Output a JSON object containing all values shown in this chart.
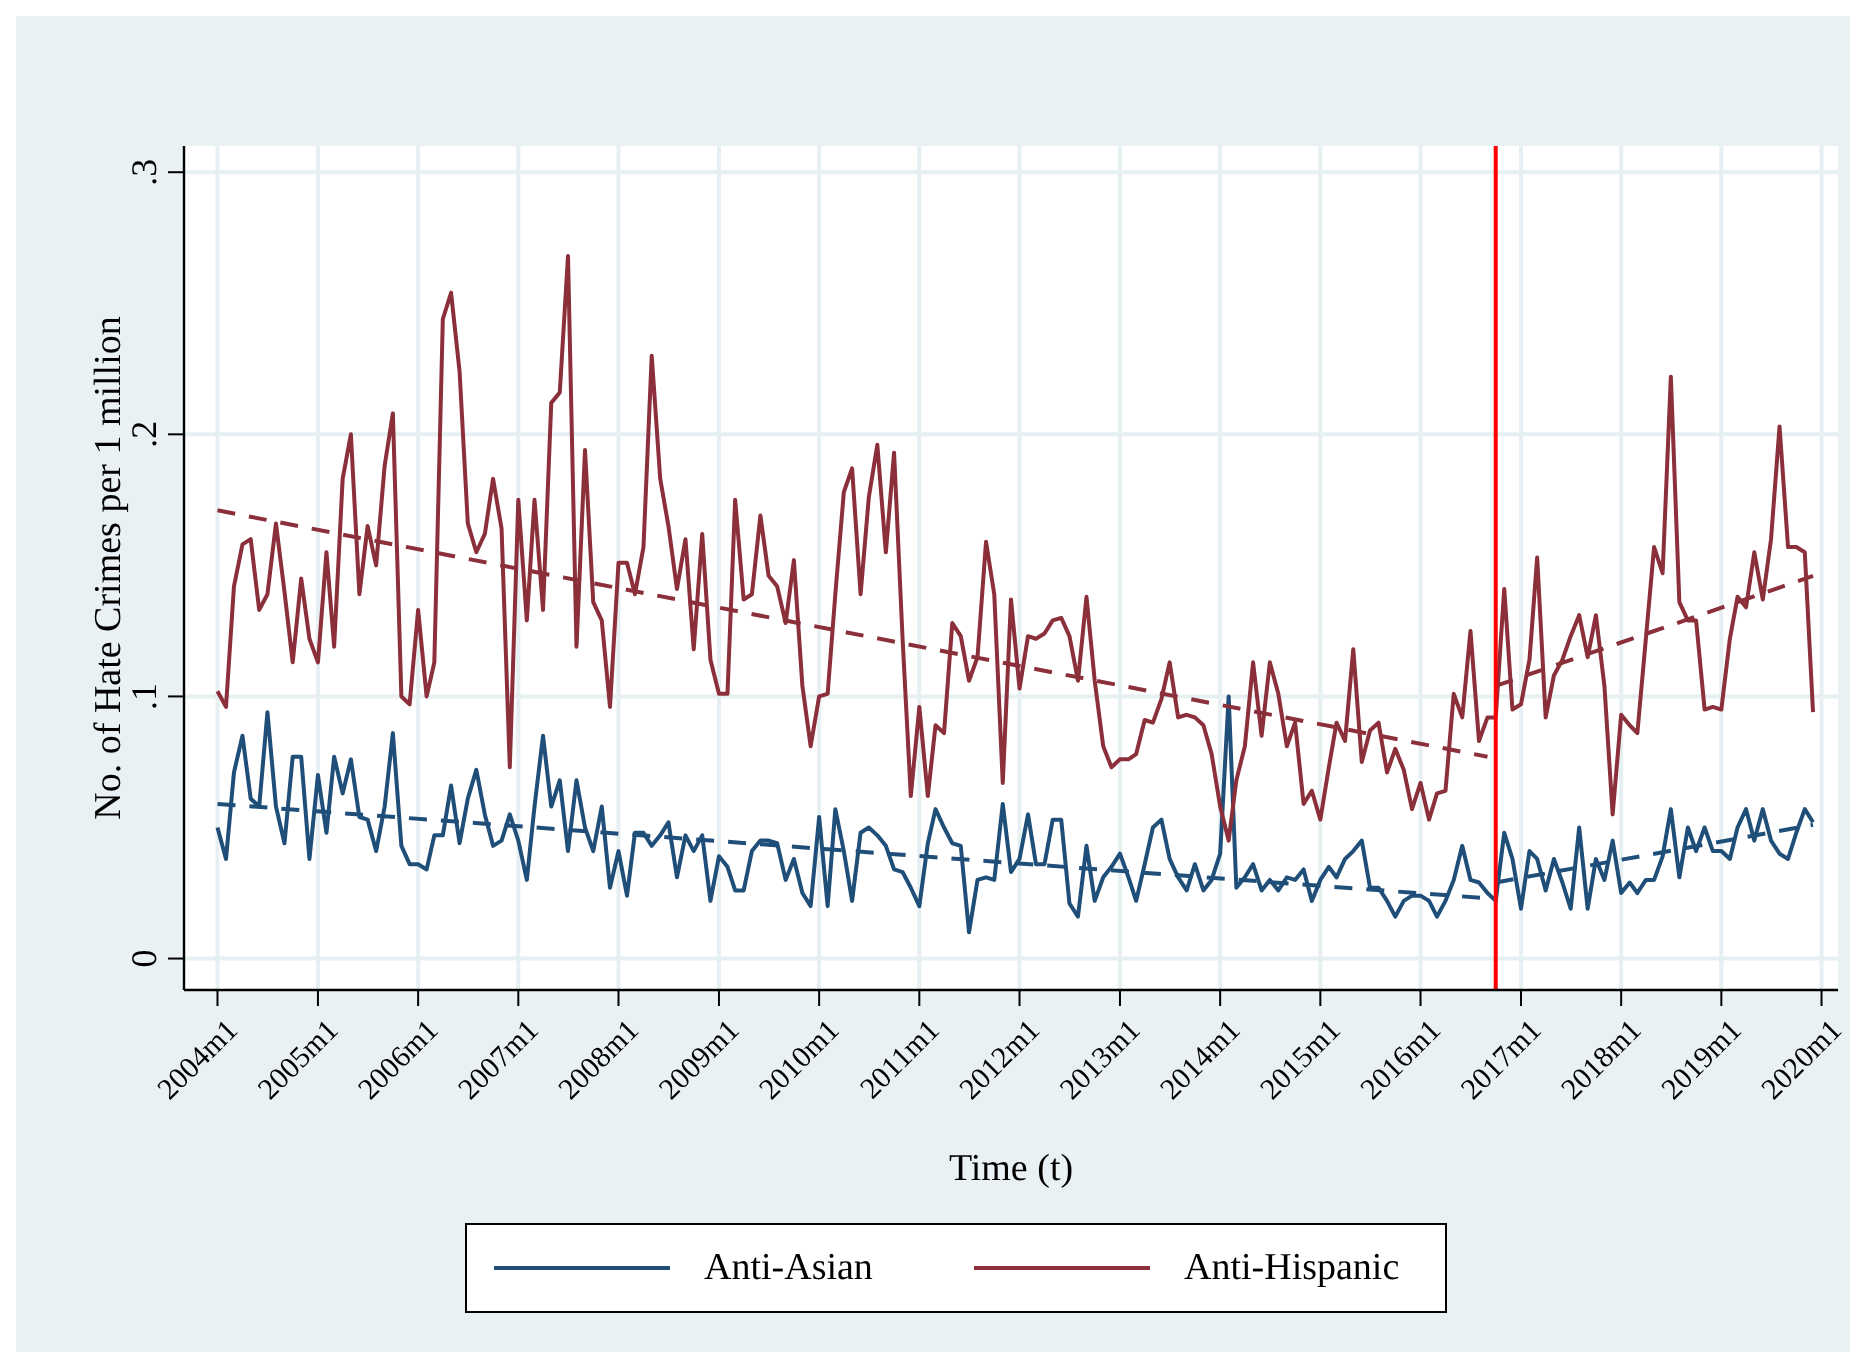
{
  "chart_data": {
    "type": "line",
    "xlabel": "Time (t)",
    "ylabel": "No. of Hate Crimes per 1 million",
    "x": [
      "2004-01",
      "2004-02",
      "2004-03",
      "2004-04",
      "2004-05",
      "2004-06",
      "2004-07",
      "2004-08",
      "2004-09",
      "2004-10",
      "2004-11",
      "2004-12",
      "2005-01",
      "2005-02",
      "2005-03",
      "2005-04",
      "2005-05",
      "2005-06",
      "2005-07",
      "2005-08",
      "2005-09",
      "2005-10",
      "2005-11",
      "2005-12",
      "2006-01",
      "2006-02",
      "2006-03",
      "2006-04",
      "2006-05",
      "2006-06",
      "2006-07",
      "2006-08",
      "2006-09",
      "2006-10",
      "2006-11",
      "2006-12",
      "2007-01",
      "2007-02",
      "2007-03",
      "2007-04",
      "2007-05",
      "2007-06",
      "2007-07",
      "2007-08",
      "2007-09",
      "2007-10",
      "2007-11",
      "2007-12",
      "2008-01",
      "2008-02",
      "2008-03",
      "2008-04",
      "2008-05",
      "2008-06",
      "2008-07",
      "2008-08",
      "2008-09",
      "2008-10",
      "2008-11",
      "2008-12",
      "2009-01",
      "2009-02",
      "2009-03",
      "2009-04",
      "2009-05",
      "2009-06",
      "2009-07",
      "2009-08",
      "2009-09",
      "2009-10",
      "2009-11",
      "2009-12",
      "2010-01",
      "2010-02",
      "2010-03",
      "2010-04",
      "2010-05",
      "2010-06",
      "2010-07",
      "2010-08",
      "2010-09",
      "2010-10",
      "2010-11",
      "2010-12",
      "2011-01",
      "2011-02",
      "2011-03",
      "2011-04",
      "2011-05",
      "2011-06",
      "2011-07",
      "2011-08",
      "2011-09",
      "2011-10",
      "2011-11",
      "2011-12",
      "2012-01",
      "2012-02",
      "2012-03",
      "2012-04",
      "2012-05",
      "2012-06",
      "2012-07",
      "2012-08",
      "2012-09",
      "2012-10",
      "2012-11",
      "2012-12",
      "2013-01",
      "2013-02",
      "2013-03",
      "2013-04",
      "2013-05",
      "2013-06",
      "2013-07",
      "2013-08",
      "2013-09",
      "2013-10",
      "2013-11",
      "2013-12",
      "2014-01",
      "2014-02",
      "2014-03",
      "2014-04",
      "2014-05",
      "2014-06",
      "2014-07",
      "2014-08",
      "2014-09",
      "2014-10",
      "2014-11",
      "2014-12",
      "2015-01",
      "2015-02",
      "2015-03",
      "2015-04",
      "2015-05",
      "2015-06",
      "2015-07",
      "2015-08",
      "2015-09",
      "2015-10",
      "2015-11",
      "2015-12",
      "2016-01",
      "2016-02",
      "2016-03",
      "2016-04",
      "2016-05",
      "2016-06",
      "2016-07",
      "2016-08",
      "2016-09",
      "2016-10",
      "2016-11",
      "2016-12",
      "2017-01",
      "2017-02",
      "2017-03",
      "2017-04",
      "2017-05",
      "2017-06",
      "2017-07",
      "2017-08",
      "2017-09",
      "2017-10",
      "2017-11",
      "2017-12",
      "2018-01",
      "2018-02",
      "2018-03",
      "2018-04",
      "2018-05",
      "2018-06",
      "2018-07",
      "2018-08",
      "2018-09",
      "2018-10",
      "2018-11",
      "2018-12",
      "2019-01",
      "2019-02",
      "2019-03",
      "2019-04",
      "2019-05",
      "2019-06",
      "2019-07",
      "2019-08",
      "2019-09",
      "2019-10",
      "2019-11",
      "2019-12"
    ],
    "series": [
      {
        "name": "Anti-Asian",
        "color": "#1f4e79",
        "values": [
          0.05,
          0.038,
          0.071,
          0.085,
          0.061,
          0.058,
          0.094,
          0.058,
          0.044,
          0.077,
          0.077,
          0.038,
          0.07,
          0.048,
          0.077,
          0.063,
          0.076,
          0.054,
          0.053,
          0.041,
          0.058,
          0.086,
          0.043,
          0.036,
          0.036,
          0.034,
          0.047,
          0.047,
          0.066,
          0.044,
          0.061,
          0.072,
          0.055,
          0.043,
          0.045,
          0.055,
          0.045,
          0.03,
          0.058,
          0.085,
          0.058,
          0.068,
          0.041,
          0.068,
          0.05,
          0.041,
          0.058,
          0.027,
          0.041,
          0.024,
          0.048,
          0.048,
          0.043,
          0.047,
          0.052,
          0.031,
          0.047,
          0.041,
          0.047,
          0.022,
          0.039,
          0.035,
          0.026,
          0.026,
          0.041,
          0.045,
          0.045,
          0.044,
          0.03,
          0.038,
          0.025,
          0.02,
          0.054,
          0.02,
          0.057,
          0.041,
          0.022,
          0.048,
          0.05,
          0.047,
          0.043,
          0.034,
          0.033,
          0.027,
          0.02,
          0.044,
          0.057,
          0.05,
          0.044,
          0.043,
          0.01,
          0.03,
          0.031,
          0.03,
          0.059,
          0.033,
          0.038,
          0.055,
          0.036,
          0.036,
          0.053,
          0.053,
          0.021,
          0.016,
          0.043,
          0.022,
          0.031,
          0.035,
          0.04,
          0.031,
          0.022,
          0.036,
          0.05,
          0.053,
          0.038,
          0.031,
          0.026,
          0.036,
          0.026,
          0.03,
          0.04,
          0.1,
          0.027,
          0.031,
          0.036,
          0.026,
          0.03,
          0.026,
          0.031,
          0.03,
          0.034,
          0.022,
          0.03,
          0.035,
          0.031,
          0.038,
          0.041,
          0.045,
          0.027,
          0.027,
          0.022,
          0.016,
          0.022,
          0.024,
          0.024,
          0.022,
          0.016,
          0.022,
          0.03,
          0.043,
          0.03,
          0.029,
          0.025,
          0.022,
          0.048,
          0.038,
          0.019,
          0.041,
          0.038,
          0.026,
          0.038,
          0.029,
          0.019,
          0.05,
          0.019,
          0.038,
          0.03,
          0.045,
          0.025,
          0.029,
          0.025,
          0.03,
          0.03,
          0.039,
          0.057,
          0.031,
          0.05,
          0.041,
          0.05,
          0.041,
          0.041,
          0.038,
          0.05,
          0.057,
          0.045,
          0.057,
          0.045,
          0.04,
          0.038,
          0.048,
          0.057,
          0.052
        ]
      },
      {
        "name": "Anti-Hispanic",
        "color": "#8b2f3a",
        "values": [
          0.102,
          0.096,
          0.142,
          0.158,
          0.16,
          0.133,
          0.139,
          0.166,
          0.14,
          0.113,
          0.145,
          0.122,
          0.113,
          0.155,
          0.119,
          0.183,
          0.2,
          0.139,
          0.165,
          0.15,
          0.188,
          0.208,
          0.1,
          0.097,
          0.133,
          0.1,
          0.113,
          0.244,
          0.254,
          0.224,
          0.166,
          0.155,
          0.162,
          0.183,
          0.164,
          0.073,
          0.175,
          0.129,
          0.175,
          0.133,
          0.212,
          0.216,
          0.268,
          0.119,
          0.194,
          0.136,
          0.129,
          0.096,
          0.151,
          0.151,
          0.139,
          0.157,
          0.23,
          0.183,
          0.165,
          0.141,
          0.16,
          0.118,
          0.162,
          0.114,
          0.101,
          0.101,
          0.175,
          0.137,
          0.139,
          0.169,
          0.146,
          0.142,
          0.128,
          0.152,
          0.104,
          0.081,
          0.1,
          0.101,
          0.139,
          0.178,
          0.187,
          0.139,
          0.176,
          0.196,
          0.155,
          0.193,
          0.122,
          0.062,
          0.096,
          0.062,
          0.089,
          0.086,
          0.128,
          0.123,
          0.106,
          0.115,
          0.159,
          0.139,
          0.067,
          0.137,
          0.103,
          0.123,
          0.122,
          0.124,
          0.129,
          0.13,
          0.123,
          0.106,
          0.138,
          0.106,
          0.081,
          0.073,
          0.076,
          0.076,
          0.078,
          0.091,
          0.09,
          0.099,
          0.113,
          0.092,
          0.093,
          0.092,
          0.089,
          0.078,
          0.058,
          0.045,
          0.068,
          0.081,
          0.113,
          0.085,
          0.113,
          0.101,
          0.081,
          0.09,
          0.059,
          0.064,
          0.053,
          0.073,
          0.09,
          0.083,
          0.118,
          0.075,
          0.087,
          0.09,
          0.071,
          0.08,
          0.072,
          0.057,
          0.067,
          0.053,
          0.063,
          0.064,
          0.101,
          0.092,
          0.125,
          0.083,
          0.092,
          0.092,
          0.141,
          0.095,
          0.097,
          0.114,
          0.153,
          0.092,
          0.108,
          0.114,
          0.123,
          0.131,
          0.115,
          0.131,
          0.104,
          0.055,
          0.093,
          0.089,
          0.086,
          0.122,
          0.157,
          0.147,
          0.222,
          0.136,
          0.129,
          0.129,
          0.095,
          0.096,
          0.095,
          0.122,
          0.138,
          0.134,
          0.155,
          0.137,
          0.16,
          0.203,
          0.157,
          0.157,
          0.155,
          0.094
        ]
      },
      {
        "type": "line",
        "color": "#1f4e79",
        "line_style": "dashed",
        "x": [
          "2004-01",
          "2016-09"
        ],
        "values": [
          0.059,
          0.023
        ]
      },
      {
        "type": "line",
        "color": "#1f4e79",
        "line_style": "dashed",
        "x": [
          "2016-10",
          "2019-12"
        ],
        "values": [
          0.029,
          0.051
        ]
      },
      {
        "type": "line",
        "color": "#8b2f3a",
        "line_style": "dashed",
        "x": [
          "2004-01",
          "2016-09"
        ],
        "values": [
          0.171,
          0.077
        ]
      },
      {
        "type": "line",
        "color": "#8b2f3a",
        "line_style": "dashed",
        "x": [
          "2016-10",
          "2019-12"
        ],
        "values": [
          0.104,
          0.146
        ]
      }
    ],
    "xlim": [
      "2003-09",
      "2020-03"
    ],
    "xticks": [
      {
        "value": "2004-01",
        "label": "2004m1"
      },
      {
        "value": "2005-01",
        "label": "2005m1"
      },
      {
        "value": "2006-01",
        "label": "2006m1"
      },
      {
        "value": "2007-01",
        "label": "2007m1"
      },
      {
        "value": "2008-01",
        "label": "2008m1"
      },
      {
        "value": "2009-01",
        "label": "2009m1"
      },
      {
        "value": "2010-01",
        "label": "2010m1"
      },
      {
        "value": "2011-01",
        "label": "2011m1"
      },
      {
        "value": "2012-01",
        "label": "2012m1"
      },
      {
        "value": "2013-01",
        "label": "2013m1"
      },
      {
        "value": "2014-01",
        "label": "2014m1"
      },
      {
        "value": "2015-01",
        "label": "2015m1"
      },
      {
        "value": "2016-01",
        "label": "2016m1"
      },
      {
        "value": "2017-01",
        "label": "2017m1"
      },
      {
        "value": "2018-01",
        "label": "2018m1"
      },
      {
        "value": "2019-01",
        "label": "2019m1"
      },
      {
        "value": "2020-01",
        "label": "2020m1"
      }
    ],
    "ylim": [
      -0.012,
      0.31
    ],
    "yticks": [
      0,
      {
        "value": 0.1,
        "label": ".1"
      },
      {
        "value": 0.2,
        "label": ".2"
      },
      {
        "value": 0.3,
        "label": ".3"
      }
    ],
    "ref_lines": [
      {
        "axis": "x",
        "value": "2016-10",
        "color": "#ff0000",
        "line_style": "solid"
      }
    ],
    "grid": true,
    "legend": "bottom",
    "line_style": "solid",
    "marker": "none"
  }
}
